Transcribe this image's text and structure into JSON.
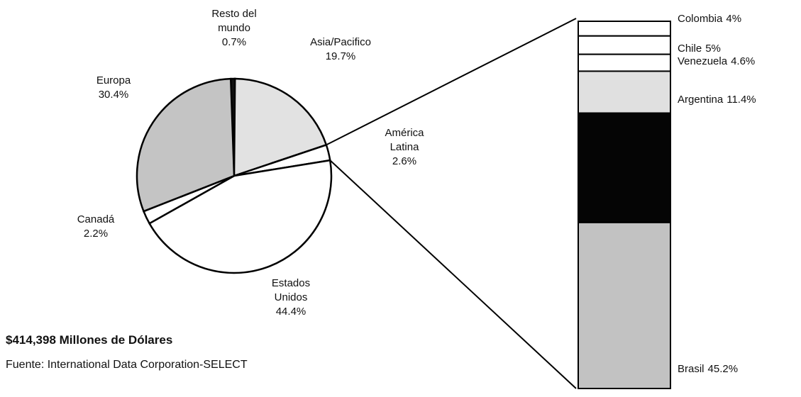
{
  "chart_data": [
    {
      "type": "pie",
      "categories": [
        "Resto del mundo",
        "Asia/Pacifico",
        "América Latina",
        "Estados Unidos",
        "Canadá",
        "Europa"
      ],
      "values": [
        0.7,
        19.7,
        2.6,
        44.4,
        2.2,
        30.4
      ],
      "value_labels": [
        "0.7%",
        "19.7%",
        "2.6%",
        "44.4%",
        "2.2%",
        "30.4%"
      ],
      "colors": [
        "#111111",
        "#e2e2e2",
        "#ffffff",
        "#ffffff",
        "#ffffff",
        "#c4c4c4"
      ],
      "annotations": [
        "$414,398 Millones de Dólares",
        "Fuente: International Data Corporation-SELECT"
      ]
    },
    {
      "type": "stacked_bar",
      "categories": [
        "Colombia",
        "Chile",
        "Venezuela",
        "Argentina",
        null,
        "Brasil"
      ],
      "values": [
        4,
        5,
        4.6,
        11.4,
        29.8,
        45.2
      ],
      "value_labels": [
        "4%",
        "5%",
        "4.6%",
        "11.4%",
        null,
        "45.2%"
      ],
      "colors": [
        "#ffffff",
        "#ffffff",
        "#ffffff",
        "#e0e0e0",
        "#050505",
        "#c2c2c2"
      ]
    }
  ]
}
